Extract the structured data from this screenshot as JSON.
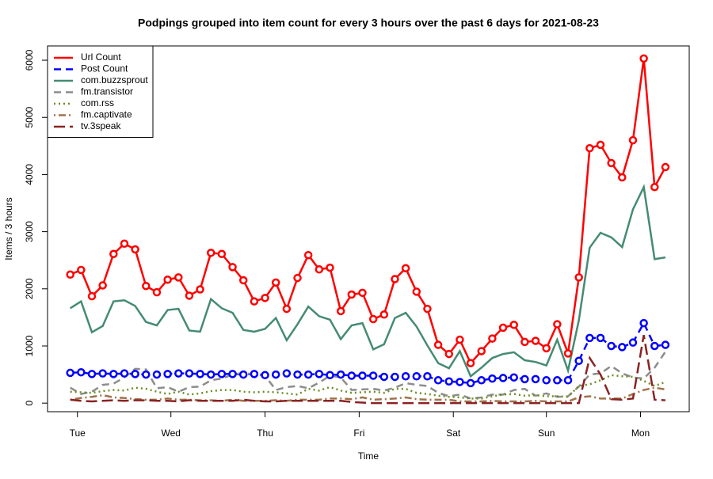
{
  "chart_data": {
    "type": "line",
    "title": "Podpings grouped into item count for every 3 hours  over the past 6 days for 2021-08-23",
    "xlabel": "Time",
    "ylabel": "Items / 3 hours",
    "x": [
      0,
      1,
      2,
      3,
      4,
      5,
      6,
      7,
      8,
      9,
      10,
      11,
      12,
      13,
      14,
      15,
      16,
      17,
      18,
      19,
      20,
      21,
      22,
      23,
      24,
      25,
      26,
      27,
      28,
      29,
      30,
      31,
      32,
      33,
      34,
      35,
      36,
      37,
      38,
      39,
      40,
      41,
      42,
      43,
      44,
      45,
      46,
      47,
      48,
      49,
      50,
      51,
      52,
      53,
      54,
      55
    ],
    "xlim": [
      -2.1,
      57.2
    ],
    "xticks": [
      {
        "value": 0.66,
        "label": "Tue"
      },
      {
        "value": 9.3,
        "label": "Wed"
      },
      {
        "value": 18.0,
        "label": "Thu"
      },
      {
        "value": 26.7,
        "label": "Fri"
      },
      {
        "value": 35.4,
        "label": "Sat"
      },
      {
        "value": 44.0,
        "label": "Sun"
      },
      {
        "value": 52.7,
        "label": "Mon"
      }
    ],
    "ylim": [
      -150,
      6250
    ],
    "yticks": [
      0,
      1000,
      2000,
      3000,
      4000,
      5000,
      6000
    ],
    "legend": "topleft",
    "series": [
      {
        "name": "Url Count",
        "color": "#ff0000",
        "dash": "solid",
        "markers": true,
        "values": [
          2250,
          2330,
          1870,
          2060,
          2610,
          2790,
          2690,
          2050,
          1940,
          2160,
          2200,
          1880,
          1990,
          2630,
          2610,
          2380,
          2150,
          1780,
          1840,
          2110,
          1650,
          2190,
          2590,
          2340,
          2370,
          1610,
          1900,
          1930,
          1470,
          1550,
          2170,
          2360,
          1950,
          1650,
          1020,
          860,
          1110,
          700,
          910,
          1130,
          1320,
          1370,
          1070,
          1090,
          960,
          1380,
          870,
          2200,
          4460,
          4520,
          4200,
          3950,
          4600,
          6030,
          3780,
          4130
        ]
      },
      {
        "name": "Post Count",
        "color": "#0000ff",
        "dash": "dashed",
        "markers": true,
        "values": [
          530,
          540,
          510,
          520,
          510,
          520,
          510,
          500,
          500,
          510,
          520,
          520,
          510,
          500,
          510,
          510,
          500,
          510,
          490,
          500,
          520,
          500,
          500,
          510,
          490,
          500,
          480,
          480,
          480,
          460,
          460,
          470,
          470,
          470,
          400,
          380,
          370,
          350,
          400,
          430,
          440,
          450,
          420,
          420,
          400,
          400,
          400,
          740,
          1140,
          1140,
          1000,
          980,
          1060,
          1400,
          1000,
          1020
        ]
      },
      {
        "name": "com.buzzsprout",
        "color": "#458b74",
        "dash": "solid",
        "markers": false,
        "values": [
          1660,
          1780,
          1240,
          1350,
          1780,
          1800,
          1700,
          1420,
          1360,
          1630,
          1650,
          1270,
          1250,
          1820,
          1660,
          1580,
          1280,
          1250,
          1300,
          1490,
          1100,
          1380,
          1690,
          1520,
          1460,
          1120,
          1360,
          1400,
          940,
          1030,
          1490,
          1580,
          1340,
          1010,
          700,
          610,
          910,
          470,
          620,
          790,
          860,
          890,
          750,
          720,
          660,
          1110,
          570,
          1450,
          2720,
          2980,
          2900,
          2730,
          3390,
          3780,
          2520,
          2550
        ]
      },
      {
        "name": "fm.transistor",
        "color": "#8c8c8c",
        "dash": "dashed",
        "markers": false,
        "values": [
          270,
          160,
          200,
          320,
          340,
          450,
          600,
          590,
          260,
          280,
          200,
          280,
          290,
          400,
          430,
          500,
          530,
          500,
          480,
          230,
          280,
          300,
          260,
          360,
          480,
          450,
          230,
          240,
          250,
          220,
          270,
          350,
          320,
          300,
          180,
          120,
          150,
          80,
          100,
          150,
          150,
          230,
          250,
          130,
          170,
          110,
          120,
          290,
          500,
          520,
          650,
          520,
          450,
          430,
          620,
          900
        ]
      },
      {
        "name": "com.rss",
        "color": "#6b8e23",
        "dash": "dotted",
        "markers": false,
        "values": [
          200,
          190,
          180,
          210,
          230,
          220,
          270,
          250,
          200,
          160,
          200,
          150,
          170,
          210,
          230,
          230,
          200,
          190,
          200,
          190,
          170,
          150,
          250,
          220,
          280,
          220,
          180,
          190,
          200,
          180,
          250,
          250,
          180,
          160,
          130,
          110,
          100,
          80,
          80,
          120,
          150,
          160,
          130,
          140,
          120,
          120,
          110,
          300,
          330,
          400,
          490,
          470,
          460,
          390,
          300,
          370
        ]
      },
      {
        "name": "fm.captivate",
        "color": "#a0724a",
        "dash": "dotdash",
        "markers": false,
        "values": [
          60,
          90,
          110,
          140,
          100,
          90,
          70,
          60,
          60,
          80,
          60,
          60,
          50,
          50,
          40,
          60,
          40,
          40,
          40,
          50,
          40,
          60,
          60,
          60,
          80,
          80,
          70,
          100,
          60,
          70,
          80,
          100,
          70,
          60,
          60,
          60,
          30,
          30,
          30,
          40,
          30,
          30,
          30,
          40,
          30,
          30,
          30,
          100,
          120,
          80,
          80,
          80,
          160,
          230,
          270,
          240
        ]
      },
      {
        "name": "tv.3speak",
        "color": "#8b2323",
        "dash": "longdash",
        "markers": false,
        "values": [
          60,
          40,
          30,
          40,
          50,
          40,
          50,
          50,
          40,
          40,
          30,
          50,
          40,
          40,
          40,
          40,
          60,
          40,
          30,
          30,
          40,
          40,
          40,
          40,
          40,
          40,
          20,
          10,
          0,
          0,
          0,
          0,
          0,
          0,
          0,
          0,
          0,
          0,
          0,
          0,
          0,
          0,
          0,
          0,
          0,
          0,
          0,
          0,
          790,
          500,
          70,
          60,
          80,
          1190,
          60,
          50
        ]
      }
    ]
  }
}
